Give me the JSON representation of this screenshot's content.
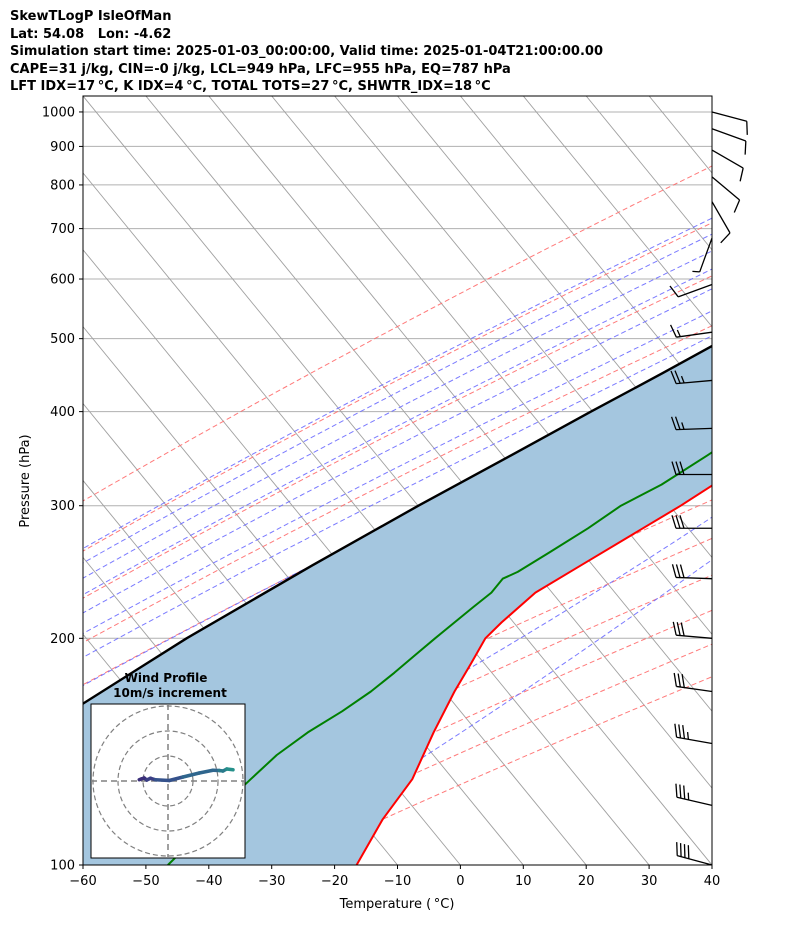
{
  "header": {
    "title": "SkewTLogP IsleOfMan",
    "location": "Lat: 54.08   Lon: -4.62",
    "times": "Simulation start time: 2025-01-03_00:00:00, Valid time: 2025-01-04T21:00:00.00",
    "params": "CAPE=31 j/kg, CIN=-0 j/kg, LCL=949 hPa, LFC=955 hPa, EQ=787 hPa",
    "indices": "LFT IDX=17 °C, K IDX=4 °C, TOTAL TOTS=27 °C, SHWTR_IDX=18 °C"
  },
  "chart_data": {
    "type": "line",
    "title": "SkewTLogP IsleOfMan",
    "xlabel": "Temperature ( °C)",
    "ylabel": "Pressure (hPa)",
    "xlim": [
      -60,
      40
    ],
    "ylim": [
      1050,
      100
    ],
    "y_scale": "log",
    "grid": true,
    "x_ticks": [
      -60,
      -50,
      -40,
      -30,
      -20,
      -10,
      0,
      10,
      20,
      30,
      40
    ],
    "x_tick_labels": [
      "−60",
      "−50",
      "−40",
      "−30",
      "−20",
      "−10",
      "0",
      "10",
      "20",
      "30",
      "40"
    ],
    "y_ticks": [
      1000,
      900,
      800,
      700,
      600,
      500,
      400,
      300,
      200,
      100
    ],
    "y_tick_labels": [
      "1000",
      "900",
      "800",
      "700",
      "600",
      "500",
      "400",
      "300",
      "200",
      "100"
    ],
    "colors": {
      "temperature": "#ff0000",
      "dewpoint": "#008000",
      "parcel": "#000000",
      "cape_fill": "#a4c6df",
      "dry_adiabat": "#ff6b6b",
      "moist_adiabat": "#6b6bff",
      "mixing_ratio": "#9b30c0",
      "isotherm": "#a0a0a0"
    },
    "series": [
      {
        "key": "temperature",
        "pressure": [
          1000,
          950,
          900,
          850,
          800,
          750,
          700,
          650,
          620,
          600,
          550,
          500,
          450,
          400,
          350,
          300,
          250,
          230,
          210,
          200,
          185,
          170,
          150,
          130,
          115,
          100
        ],
        "temp": [
          3.3,
          1.5,
          -0.2,
          -1.2,
          -2.0,
          -0.8,
          0.8,
          1.6,
          2.1,
          2.2,
          2.2,
          1.8,
          1.0,
          -1.2,
          -5.8,
          -11.7,
          -19.8,
          -23.5,
          -25.0,
          -25.5,
          -24.5,
          -23.5,
          -21.5,
          -18.8,
          -18.3,
          -16.5
        ]
      },
      {
        "key": "dewpoint",
        "pressure": [
          1000,
          950,
          900,
          850,
          820,
          800,
          780,
          750,
          700,
          650,
          620,
          600,
          550,
          500,
          450,
          400,
          350,
          320,
          300,
          280,
          260,
          245,
          240,
          230,
          220,
          200,
          190,
          180,
          170,
          160,
          150,
          140,
          130,
          120,
          110,
          100
        ],
        "temp": [
          2.9,
          3.2,
          1.2,
          -2.3,
          -3.8,
          -4.3,
          -4.3,
          -3.8,
          -2.3,
          -1.3,
          -0.8,
          -1.0,
          -1.5,
          -3.2,
          -5.8,
          -9.2,
          -14.0,
          -17.5,
          -21.2,
          -23.5,
          -26.5,
          -29.0,
          -30.5,
          -30.5,
          -31.5,
          -33.5,
          -34.5,
          -35.5,
          -36.8,
          -38.8,
          -41.5,
          -43.5,
          -44.5,
          -45.5,
          -45.5,
          -46.5
        ]
      },
      {
        "key": "parcel",
        "pressure": [
          1000,
          950,
          900,
          850,
          800,
          750,
          700,
          650,
          600,
          550,
          500,
          450,
          400,
          350,
          300,
          250,
          200,
          150,
          100
        ],
        "temp": [
          5.3,
          3.0,
          0.8,
          -1.5,
          -4.0,
          -6.8,
          -9.8,
          -13.3,
          -17.0,
          -21.5,
          -26.3,
          -31.8,
          -38.2,
          -45.2,
          -53.4,
          -62.5,
          -73.0,
          -84.5,
          -99.0
        ]
      }
    ],
    "cape_region": "between parcel and temperature profile",
    "wind_barbs": [
      {
        "pressure": 100,
        "dir": 285,
        "speed": 40
      },
      {
        "pressure": 120,
        "dir": 283,
        "speed": 38
      },
      {
        "pressure": 145,
        "dir": 280,
        "speed": 36
      },
      {
        "pressure": 170,
        "dir": 278,
        "speed": 34
      },
      {
        "pressure": 200,
        "dir": 275,
        "speed": 34
      },
      {
        "pressure": 240,
        "dir": 272,
        "speed": 33
      },
      {
        "pressure": 280,
        "dir": 270,
        "speed": 32
      },
      {
        "pressure": 330,
        "dir": 270,
        "speed": 30
      },
      {
        "pressure": 380,
        "dir": 268,
        "speed": 28
      },
      {
        "pressure": 440,
        "dir": 265,
        "speed": 25
      },
      {
        "pressure": 510,
        "dir": 262,
        "speed": 18
      },
      {
        "pressure": 590,
        "dir": 250,
        "speed": 10
      },
      {
        "pressure": 680,
        "dir": 200,
        "speed": 8
      },
      {
        "pressure": 760,
        "dir": 150,
        "speed": 10
      },
      {
        "pressure": 820,
        "dir": 130,
        "speed": 11
      },
      {
        "pressure": 890,
        "dir": 120,
        "speed": 12
      },
      {
        "pressure": 950,
        "dir": 110,
        "speed": 12
      },
      {
        "pressure": 1000,
        "dir": 105,
        "speed": 11
      }
    ],
    "hodograph": {
      "title": "Wind Profile",
      "subtitle": "10m/s increment",
      "rings_ms": [
        10,
        20,
        30
      ],
      "points": [
        [
          -11.5,
          0.5
        ],
        [
          -10.5,
          0.9
        ],
        [
          -9.5,
          1.2
        ],
        [
          -8.5,
          0.4
        ],
        [
          -7,
          1.1
        ],
        [
          -5,
          0.5
        ],
        [
          0.5,
          0.2
        ],
        [
          6,
          1.6
        ],
        [
          12.5,
          3.2
        ],
        [
          18,
          4.3
        ],
        [
          20.5,
          4.2
        ],
        [
          22,
          4.0
        ],
        [
          23.5,
          4.8
        ],
        [
          26,
          4.5
        ]
      ]
    }
  }
}
